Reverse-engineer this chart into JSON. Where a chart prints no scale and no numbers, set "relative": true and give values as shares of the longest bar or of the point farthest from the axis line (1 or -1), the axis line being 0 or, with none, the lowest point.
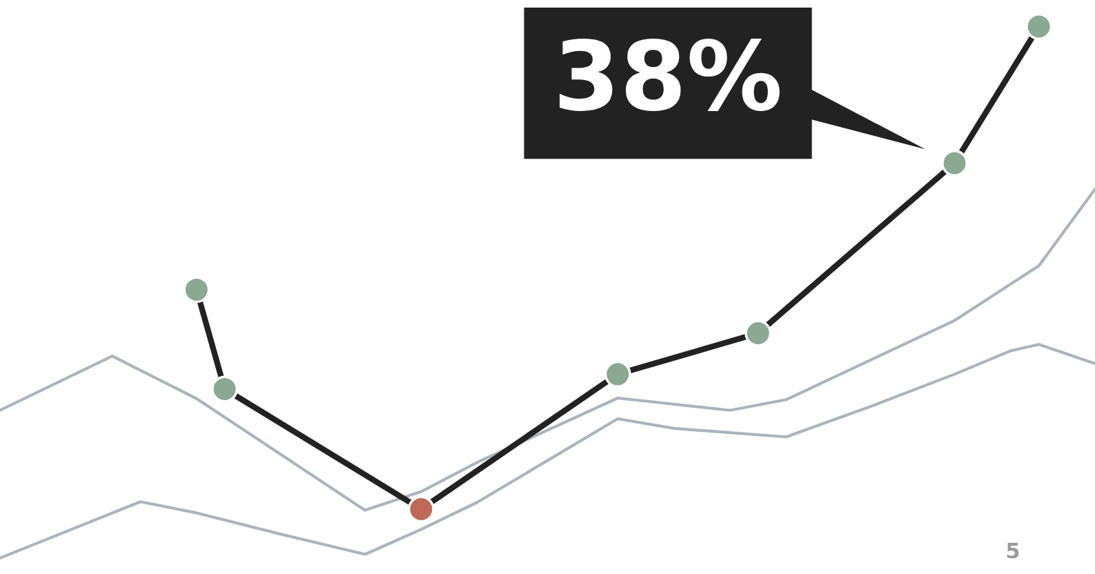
{
  "chart_data": {
    "type": "line",
    "relative": true,
    "categories": [
      null,
      null,
      null,
      null,
      null,
      null,
      null,
      null,
      null,
      null,
      null,
      null,
      null,
      null,
      null,
      null,
      null,
      null,
      null,
      null,
      null,
      null,
      null,
      null,
      null,
      null,
      null,
      null,
      null,
      null,
      null,
      null,
      null,
      null,
      null,
      null,
      null,
      null,
      null,
      null
    ],
    "series": [
      {
        "color": "#aab4bc",
        "marker": "none",
        "values": [
          0.278,
          null,
          null,
          null,
          0.38,
          null,
          null,
          0.3,
          null,
          null,
          null,
          null,
          null,
          0.09,
          null,
          0.125,
          null,
          0.18,
          null,
          null,
          null,
          null,
          0.301,
          null,
          null,
          null,
          0.278,
          null,
          0.298,
          null,
          null,
          null,
          null,
          null,
          0.447,
          null,
          null,
          0.55,
          null,
          0.694
        ]
      },
      {
        "color": "#aab4bc",
        "marker": "none",
        "values": [
          0,
          null,
          null,
          null,
          null,
          0.106,
          null,
          0.085,
          null,
          null,
          0.045,
          null,
          null,
          0.007,
          null,
          0.054,
          null,
          0.105,
          null,
          null,
          null,
          null,
          0.262,
          null,
          0.244,
          null,
          null,
          null,
          0.228,
          null,
          null,
          0.285,
          null,
          null,
          0.346,
          null,
          0.39,
          0.402,
          null,
          0.366
        ]
      },
      {
        "color": "#222222",
        "marker": "circle",
        "colors": [
          null,
          null,
          null,
          null,
          null,
          null,
          null,
          "#8ba892",
          "#8ba892",
          null,
          null,
          null,
          null,
          null,
          null,
          "#c0685a",
          null,
          null,
          null,
          null,
          null,
          null,
          "#8ba892",
          null,
          null,
          null,
          null,
          "#8ba892",
          null,
          null,
          null,
          null,
          null,
          null,
          "#8ba892",
          null,
          null,
          "#8ba892",
          null,
          null
        ],
        "values": [
          null,
          null,
          null,
          null,
          null,
          null,
          null,
          0.505,
          0.318,
          null,
          null,
          null,
          null,
          null,
          null,
          0.092,
          null,
          null,
          null,
          null,
          null,
          null,
          0.346,
          null,
          null,
          null,
          null,
          0.423,
          null,
          null,
          null,
          null,
          null,
          null,
          0.743,
          null,
          null,
          1.0,
          null,
          null
        ]
      }
    ],
    "annotations": [
      "38%",
      "5"
    ]
  }
}
